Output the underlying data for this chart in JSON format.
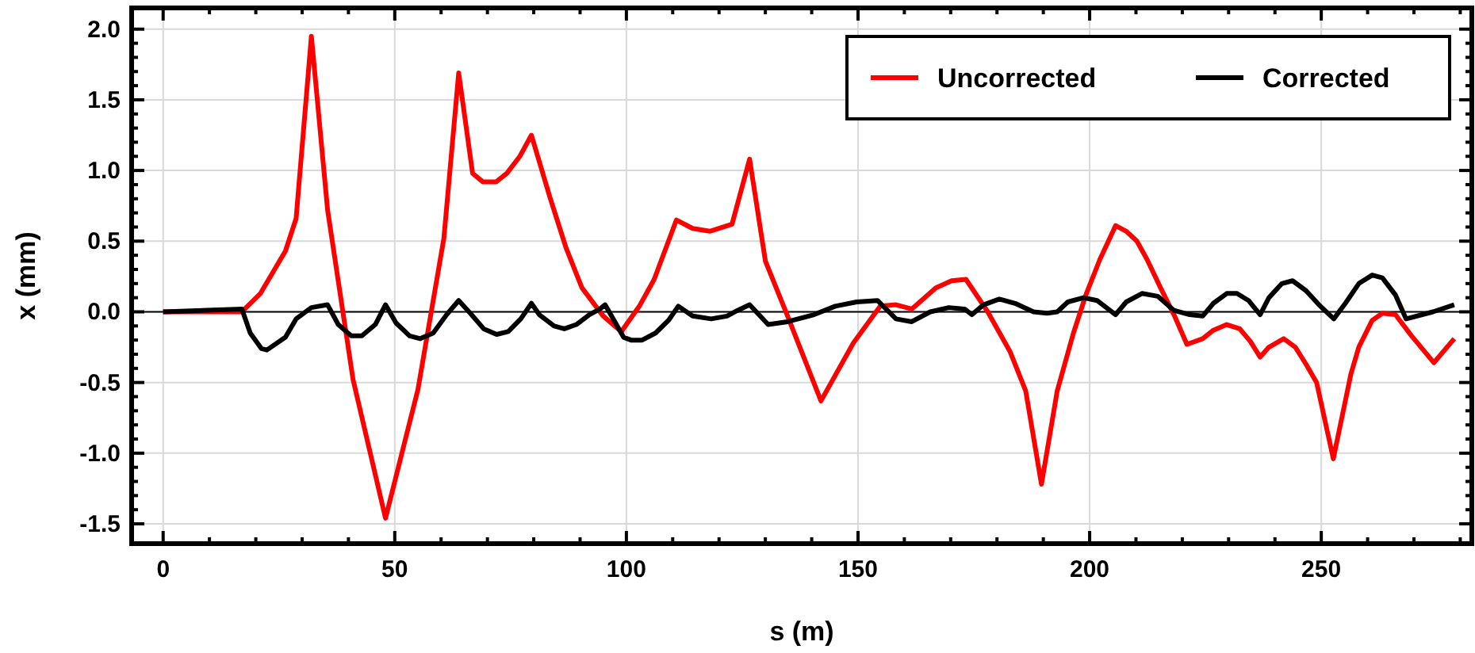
{
  "chart_data": {
    "type": "line",
    "xlabel": "s (m)",
    "ylabel": "x (mm)",
    "xlim": [
      -6.8,
      282.5
    ],
    "ylim": [
      -1.64,
      2.15
    ],
    "xticks": [
      0,
      {
        "value": 10,
        "label": null
      },
      {
        "value": 20,
        "label": null
      },
      {
        "value": 30,
        "label": null
      },
      {
        "value": 40,
        "label": null
      },
      50,
      {
        "value": 60,
        "label": null
      },
      {
        "value": 70,
        "label": null
      },
      {
        "value": 80,
        "label": null
      },
      {
        "value": 90,
        "label": null
      },
      100,
      {
        "value": 110,
        "label": null
      },
      {
        "value": 120,
        "label": null
      },
      {
        "value": 130,
        "label": null
      },
      {
        "value": 140,
        "label": null
      },
      150,
      {
        "value": 160,
        "label": null
      },
      {
        "value": 170,
        "label": null
      },
      {
        "value": 180,
        "label": null
      },
      {
        "value": 190,
        "label": null
      },
      200,
      {
        "value": 210,
        "label": null
      },
      {
        "value": 220,
        "label": null
      },
      {
        "value": 230,
        "label": null
      },
      {
        "value": 240,
        "label": null
      },
      250,
      {
        "value": 260,
        "label": null
      },
      {
        "value": 270,
        "label": null
      },
      {
        "value": 280,
        "label": null
      }
    ],
    "yticks": [
      {
        "value": -1.5,
        "label": "-1.5"
      },
      {
        "value": -1.4,
        "label": null
      },
      {
        "value": -1.3,
        "label": null
      },
      {
        "value": -1.2,
        "label": null
      },
      {
        "value": -1.1,
        "label": null
      },
      {
        "value": -1,
        "label": "-1.0"
      },
      {
        "value": -0.9,
        "label": null
      },
      {
        "value": -0.8,
        "label": null
      },
      {
        "value": -0.7,
        "label": null
      },
      {
        "value": -0.6,
        "label": null
      },
      {
        "value": -0.5,
        "label": "-0.5"
      },
      {
        "value": -0.4,
        "label": null
      },
      {
        "value": -0.3,
        "label": null
      },
      {
        "value": -0.2,
        "label": null
      },
      {
        "value": -0.1,
        "label": null
      },
      {
        "value": 0,
        "label": "0.0"
      },
      {
        "value": 0.1,
        "label": null
      },
      {
        "value": 0.2,
        "label": null
      },
      {
        "value": 0.3,
        "label": null
      },
      {
        "value": 0.4,
        "label": null
      },
      {
        "value": 0.5,
        "label": "0.5"
      },
      {
        "value": 0.6,
        "label": null
      },
      {
        "value": 0.7,
        "label": null
      },
      {
        "value": 0.8,
        "label": null
      },
      {
        "value": 0.9,
        "label": null
      },
      {
        "value": 1,
        "label": "1.0"
      },
      {
        "value": 1.1,
        "label": null
      },
      {
        "value": 1.2,
        "label": null
      },
      {
        "value": 1.3,
        "label": null
      },
      {
        "value": 1.4,
        "label": null
      },
      {
        "value": 1.5,
        "label": "1.5"
      },
      {
        "value": 1.6,
        "label": null
      },
      {
        "value": 1.7,
        "label": null
      },
      {
        "value": 1.8,
        "label": null
      },
      {
        "value": 1.9,
        "label": null
      },
      {
        "value": 2,
        "label": "2.0"
      }
    ],
    "grid": true,
    "legend": "top right",
    "marker": "none",
    "line_style": "solid",
    "ref_lines": [
      {
        "axis": "y",
        "value": 0,
        "color": "#000000"
      }
    ],
    "series": [
      {
        "name": "Uncorrected",
        "color": "#ff0000",
        "x": [
          0,
          17,
          21,
          26.4,
          28.7,
          32,
          35.5,
          41,
          48,
          55,
          60.6,
          63.8,
          66.8,
          69,
          71.9,
          74.2,
          77,
          79.5,
          83.4,
          87,
          90.4,
          95,
          98.9,
          102.8,
          106,
          110.8,
          114.3,
          118,
          122.8,
          126.6,
          130,
          134.8,
          142,
          149,
          154.8,
          158.2,
          161.6,
          166.8,
          170.2,
          173.3,
          178,
          182.8,
          186.2,
          189.6,
          193,
          196.5,
          199.3,
          202.2,
          205.6,
          207.9,
          210.2,
          212.4,
          215.3,
          218.2,
          221,
          224.4,
          226.7,
          229.6,
          232.4,
          234.7,
          236.8,
          238.7,
          241.9,
          244.4,
          246.7,
          249,
          252.6,
          256.4,
          258.1,
          261,
          263.2,
          266,
          269.5,
          274.3,
          278.7
        ],
        "values": [
          0,
          0,
          0.13,
          0.43,
          0.66,
          1.95,
          0.72,
          -0.48,
          -1.46,
          -0.55,
          0.52,
          1.69,
          0.98,
          0.92,
          0.92,
          0.98,
          1.1,
          1.25,
          0.82,
          0.45,
          0.17,
          -0.03,
          -0.14,
          0.04,
          0.23,
          0.65,
          0.59,
          0.57,
          0.62,
          1.08,
          0.36,
          -0.03,
          -0.63,
          -0.22,
          0.04,
          0.05,
          0.02,
          0.17,
          0.22,
          0.23,
          0,
          -0.28,
          -0.56,
          -1.22,
          -0.56,
          -0.15,
          0.13,
          0.37,
          0.61,
          0.57,
          0.5,
          0.37,
          0.17,
          -0.02,
          -0.23,
          -0.19,
          -0.13,
          -0.09,
          -0.12,
          -0.21,
          -0.32,
          -0.25,
          -0.19,
          -0.25,
          -0.37,
          -0.5,
          -1.04,
          -0.44,
          -0.25,
          -0.06,
          -0.01,
          -0.02,
          -0.17,
          -0.36,
          -0.19
        ]
      },
      {
        "name": "Corrected",
        "color": "#000000",
        "x": [
          0,
          17,
          18.8,
          21.2,
          22.4,
          26.4,
          28.7,
          32,
          35.5,
          37.8,
          40.6,
          42.9,
          45.8,
          48,
          50.3,
          53.2,
          55.5,
          58.3,
          61.2,
          63.8,
          66.3,
          69.2,
          72,
          74.5,
          77.2,
          79.5,
          81.2,
          84.4,
          86.6,
          89.2,
          92,
          94.3,
          95.4,
          99.4,
          101,
          103.4,
          106.3,
          109.1,
          111.2,
          114.3,
          118.3,
          121.7,
          124,
          126.6,
          130.6,
          134.8,
          140.5,
          145.1,
          149.7,
          154.2,
          158.2,
          161.6,
          165.6,
          169.6,
          173,
          174.6,
          177.1,
          180.5,
          183.9,
          187.9,
          190.8,
          193,
          195.3,
          198.7,
          201.6,
          205.6,
          207.9,
          211.3,
          214.7,
          218.2,
          221.6,
          224.4,
          226.7,
          229.6,
          231.8,
          234.3,
          236.8,
          238.7,
          241.5,
          243.8,
          246.7,
          249.5,
          252.7,
          255.2,
          258.1,
          261,
          263.2,
          266,
          268.3,
          274.1,
          278.7
        ],
        "values": [
          0,
          0.02,
          -0.15,
          -0.26,
          -0.27,
          -0.18,
          -0.05,
          0.03,
          0.05,
          -0.09,
          -0.17,
          -0.17,
          -0.09,
          0.05,
          -0.08,
          -0.17,
          -0.19,
          -0.15,
          -0.02,
          0.08,
          -0.01,
          -0.12,
          -0.16,
          -0.14,
          -0.05,
          0.06,
          -0.02,
          -0.1,
          -0.12,
          -0.09,
          -0.02,
          0.02,
          0.05,
          -0.18,
          -0.2,
          -0.2,
          -0.15,
          -0.06,
          0.04,
          -0.03,
          -0.05,
          -0.03,
          0.01,
          0.05,
          -0.09,
          -0.07,
          -0.02,
          0.04,
          0.07,
          0.08,
          -0.05,
          -0.07,
          0,
          0.03,
          0.02,
          -0.02,
          0.05,
          0.09,
          0.06,
          0,
          -0.01,
          0,
          0.07,
          0.1,
          0.08,
          -0.02,
          0.07,
          0.13,
          0.11,
          0.01,
          -0.02,
          -0.03,
          0.06,
          0.13,
          0.13,
          0.08,
          -0.02,
          0.1,
          0.2,
          0.22,
          0.15,
          0.05,
          -0.05,
          0.06,
          0.2,
          0.26,
          0.24,
          0.12,
          -0.05,
          0,
          0.05
        ]
      }
    ]
  }
}
